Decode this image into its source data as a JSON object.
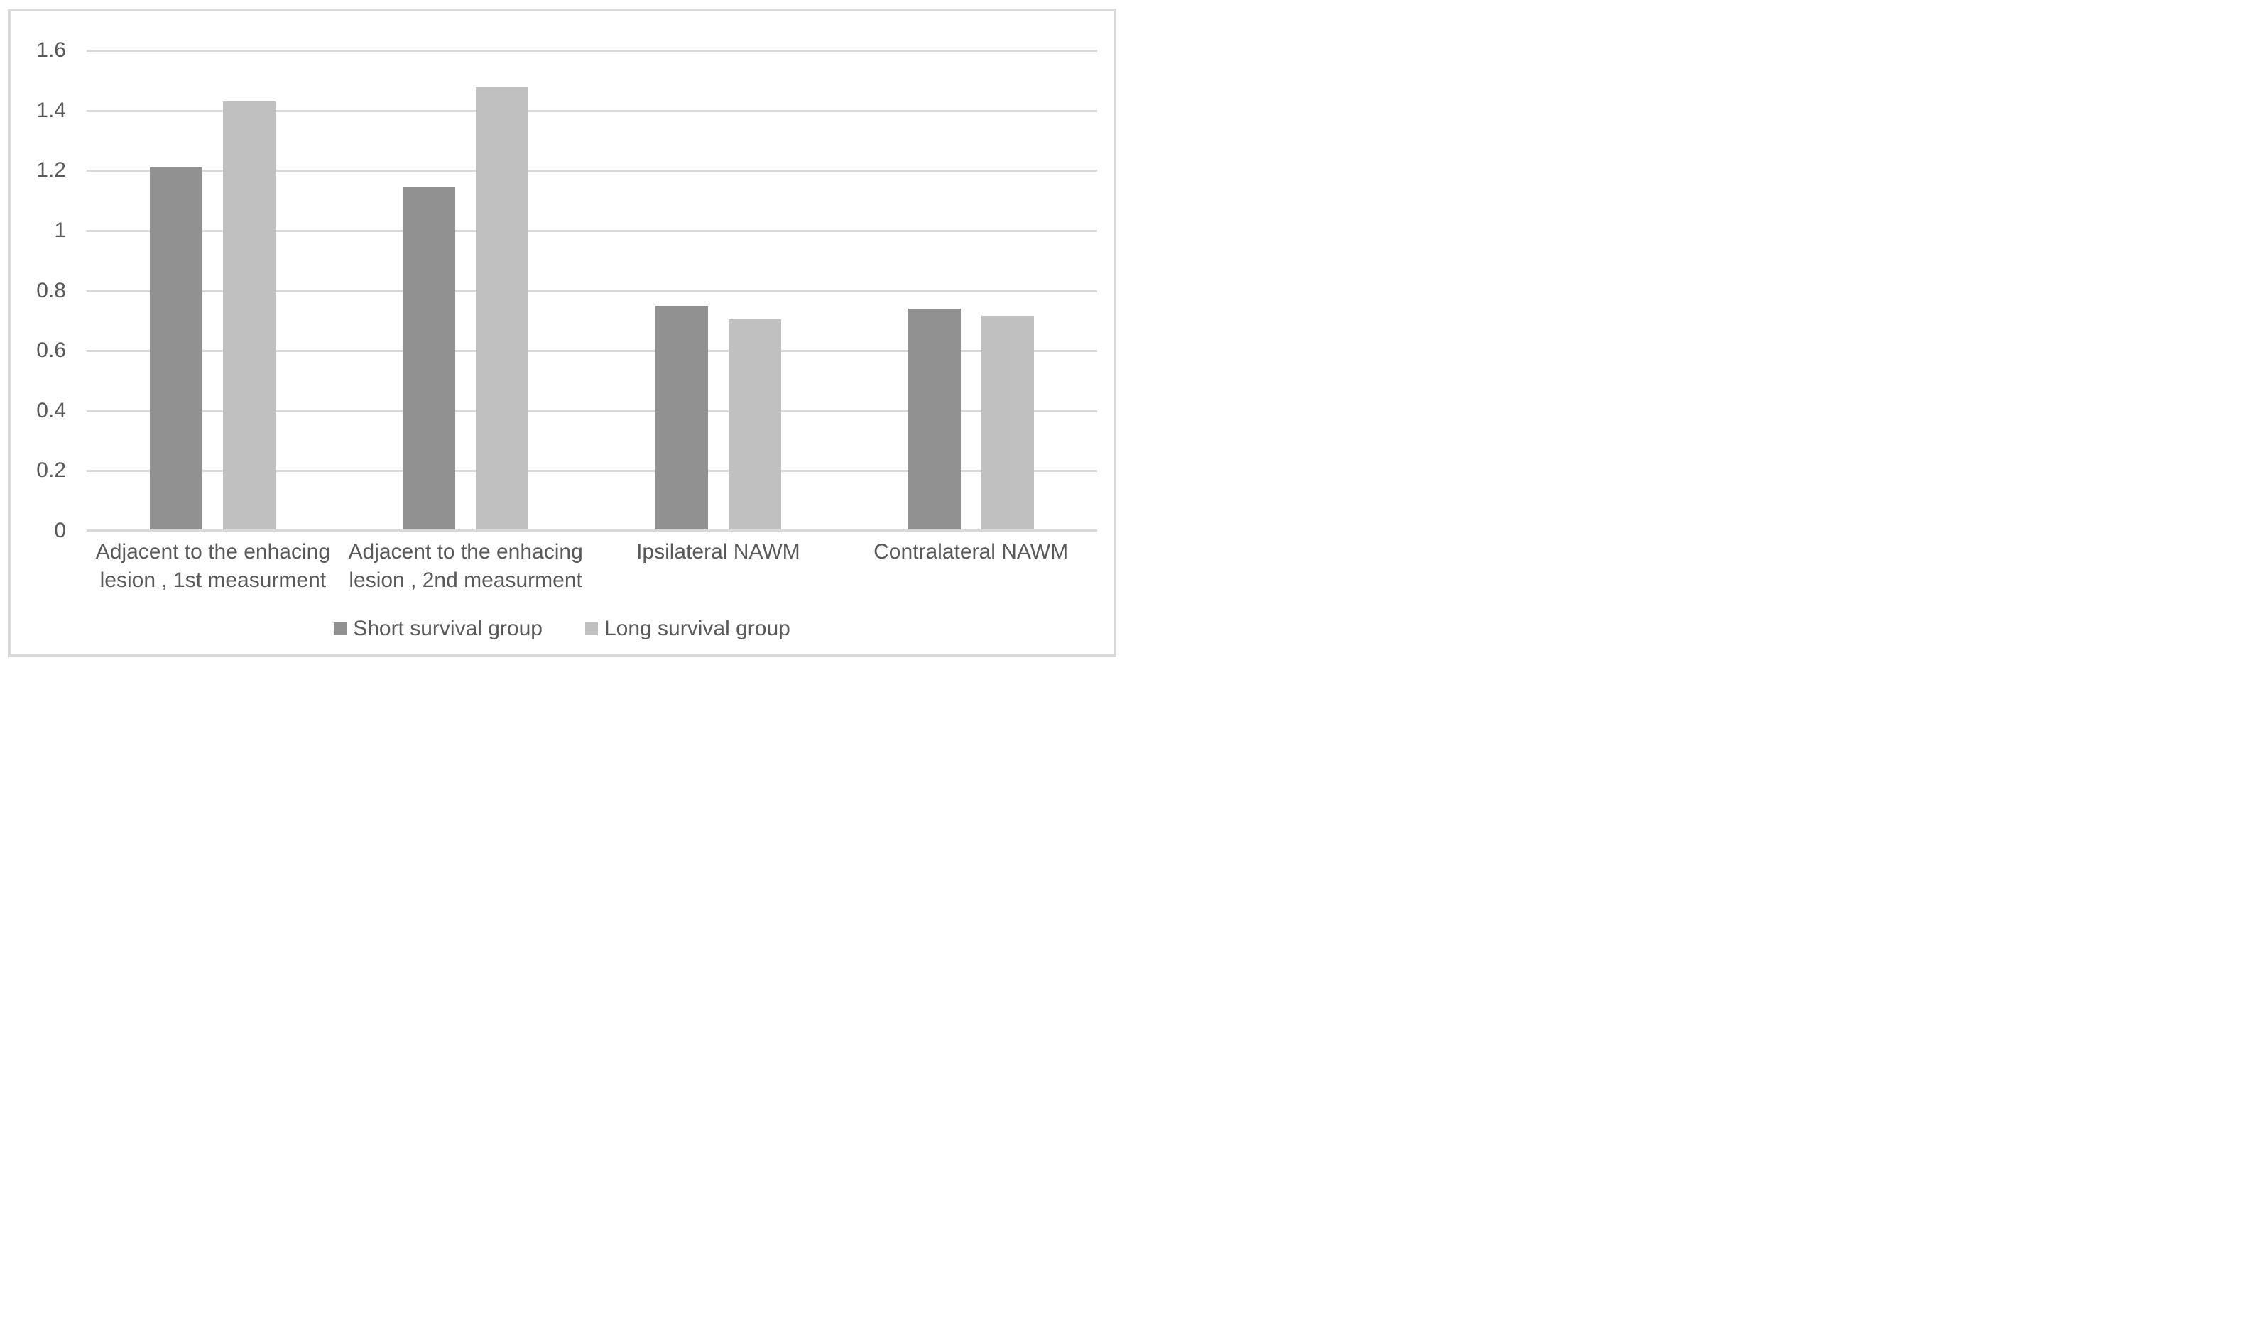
{
  "chart_data": {
    "type": "bar",
    "title": "",
    "categories": [
      "Adjacent to the enhacing lesion , 1st measurment",
      "Adjacent to the enhacing lesion , 2nd measurment",
      "Ipsilateral NAWM",
      "Contralateral NAWM"
    ],
    "category_lines": [
      [
        "Adjacent to the enhacing",
        "lesion , 1st measurment"
      ],
      [
        "Adjacent to the enhacing",
        "lesion , 2nd measurment"
      ],
      [
        "Ipsilateral NAWM"
      ],
      [
        "Contralateral NAWM"
      ]
    ],
    "series": [
      {
        "name": "Short survival group",
        "color": "#919191",
        "values": [
          1.21,
          1.145,
          0.75,
          0.74
        ]
      },
      {
        "name": "Long survival group",
        "color": "#c0c0c0",
        "values": [
          1.43,
          1.48,
          0.705,
          0.715
        ]
      }
    ],
    "y_axis": {
      "min": 0,
      "max": 1.6,
      "step": 0.2,
      "tick_labels": [
        "0",
        "0.2",
        "0.4",
        "0.6",
        "0.8",
        "1",
        "1.2",
        "1.4",
        "1.6"
      ]
    },
    "xlabel": "",
    "ylabel": "",
    "grid": true,
    "legend_position": "bottom",
    "colors": {
      "background": "#ffffff",
      "gridline": "#d9d9d9",
      "axis_line": "#d9d9d9",
      "text": "#595959",
      "frame_border": "#dadada"
    }
  }
}
